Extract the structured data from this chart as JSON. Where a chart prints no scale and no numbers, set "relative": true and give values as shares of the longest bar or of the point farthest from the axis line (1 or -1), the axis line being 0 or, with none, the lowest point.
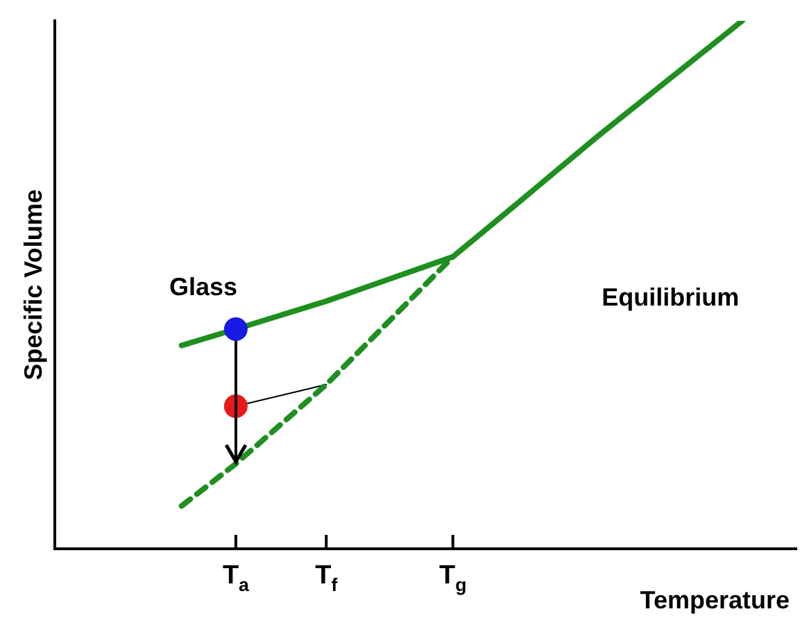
{
  "chart_data": {
    "type": "line",
    "relative": true,
    "xlabel": "Temperature",
    "ylabel": "Specific Volume",
    "legend": false,
    "grid": false,
    "categories": [
      null,
      null,
      null,
      null,
      null,
      null,
      null,
      null,
      null,
      null,
      "T$_{a}$",
      null,
      null,
      null,
      null,
      "T$_{f}$",
      null,
      null,
      null,
      null,
      null,
      null,
      "T$_{g}$",
      null,
      null,
      null,
      null,
      null,
      null,
      null,
      null,
      null,
      null,
      null,
      null,
      null,
      null,
      null,
      null,
      null,
      null,
      null
    ],
    "annotations": [
      "Glass",
      "Equilibrium"
    ],
    "series": [
      {
        "color": "#1f8f1f",
        "line_style": "solid",
        "values": [
          null,
          null,
          null,
          null,
          null,
          null,
          null,
          0.385,
          null,
          null,
          0.416,
          null,
          null,
          null,
          null,
          0.469,
          null,
          null,
          null,
          null,
          null,
          null,
          0.553,
          null,
          null,
          0.638,
          null,
          null,
          null,
          null,
          0.781,
          null,
          null,
          null,
          null,
          null,
          null,
          null,
          1,
          null,
          null,
          null
        ]
      },
      {
        "color": "#1f8f1f",
        "line_style": "dashed",
        "values": [
          null,
          null,
          null,
          null,
          null,
          null,
          null,
          0.081,
          null,
          null,
          0.161,
          null,
          null,
          null,
          null,
          0.311,
          null,
          null,
          null,
          null,
          null,
          null,
          0.553,
          null,
          null,
          null,
          null,
          null,
          null,
          null,
          null,
          null,
          null,
          null,
          null,
          null,
          null,
          null,
          null,
          null,
          null,
          null
        ]
      },
      {
        "color": "#000000",
        "line_style": "solid",
        "values": [
          null,
          null,
          null,
          null,
          null,
          null,
          null,
          null,
          null,
          null,
          0.27,
          null,
          null,
          null,
          null,
          0.311,
          null,
          null,
          null,
          null,
          null,
          null,
          null,
          null,
          null,
          null,
          null,
          null,
          null,
          null,
          null,
          null,
          null,
          null,
          null,
          null,
          null,
          null,
          null,
          null,
          null,
          null
        ]
      },
      {
        "type": "scatter",
        "color": "#1a1ae6",
        "marker": "circle",
        "values": [
          null,
          null,
          null,
          null,
          null,
          null,
          null,
          null,
          null,
          null,
          0.416,
          null,
          null,
          null,
          null,
          null,
          null,
          null,
          null,
          null,
          null,
          null,
          null,
          null,
          null,
          null,
          null,
          null,
          null,
          null,
          null,
          null,
          null,
          null,
          null,
          null,
          null,
          null,
          null,
          null,
          null,
          null
        ]
      },
      {
        "type": "scatter",
        "color": "#e61a1a",
        "marker": "circle",
        "values": [
          null,
          null,
          null,
          null,
          null,
          null,
          null,
          null,
          null,
          null,
          0.27,
          null,
          null,
          null,
          null,
          null,
          null,
          null,
          null,
          null,
          null,
          null,
          null,
          null,
          null,
          null,
          null,
          null,
          null,
          null,
          null,
          null,
          null,
          null,
          null,
          null,
          null,
          null,
          null,
          null,
          null,
          null
        ]
      }
    ]
  }
}
